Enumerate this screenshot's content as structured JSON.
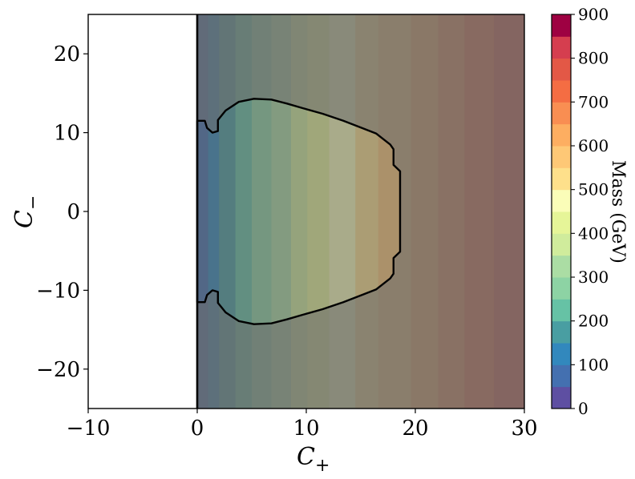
{
  "chart_data": {
    "type": "heatmap",
    "xlabel": "C+",
    "ylabel": "C−",
    "xlim": [
      -10,
      30
    ],
    "ylim": [
      -25,
      25
    ],
    "x_ticks": [
      -10,
      0,
      10,
      20,
      30
    ],
    "x_tick_labels": [
      "−10",
      "0",
      "10",
      "20",
      "30"
    ],
    "y_ticks": [
      -20,
      -10,
      0,
      10,
      20
    ],
    "y_tick_labels": [
      "−20",
      "−10",
      "0",
      "10",
      "20"
    ],
    "mass_field": {
      "description_source": "mass increases with C+, uniform in C−",
      "bands": [
        {
          "x_from": 0,
          "x_to": 1,
          "mass": 50
        },
        {
          "x_from": 1,
          "x_to": 2,
          "mass": 100
        },
        {
          "x_from": 2,
          "x_to": 3.5,
          "mass": 150
        },
        {
          "x_from": 3.5,
          "x_to": 5,
          "mass": 200
        },
        {
          "x_from": 5,
          "x_to": 6.8,
          "mass": 250
        },
        {
          "x_from": 6.8,
          "x_to": 8.6,
          "mass": 300
        },
        {
          "x_from": 8.6,
          "x_to": 10.1,
          "mass": 350
        },
        {
          "x_from": 10.1,
          "x_to": 12.1,
          "mass": 400
        },
        {
          "x_from": 12.1,
          "x_to": 14.5,
          "mass": 450
        },
        {
          "x_from": 14.5,
          "x_to": 16.6,
          "mass": 500
        },
        {
          "x_from": 16.6,
          "x_to": 19.6,
          "mass": 550
        },
        {
          "x_from": 19.6,
          "x_to": 22.1,
          "mass": 600
        },
        {
          "x_from": 22.1,
          "x_to": 24.5,
          "mass": 650
        },
        {
          "x_from": 24.5,
          "x_to": 27.2,
          "mass": 700
        },
        {
          "x_from": 27.2,
          "x_to": 30,
          "mass": 750
        }
      ]
    },
    "allowed_region_boundary": [
      [
        0.0,
        11.5
      ],
      [
        0.7,
        11.5
      ],
      [
        0.9,
        10.6
      ],
      [
        1.4,
        10.0
      ],
      [
        1.9,
        10.2
      ],
      [
        1.9,
        11.6
      ],
      [
        2.6,
        12.8
      ],
      [
        3.8,
        13.9
      ],
      [
        5.2,
        14.3
      ],
      [
        6.8,
        14.2
      ],
      [
        8.2,
        13.7
      ],
      [
        9.7,
        13.1
      ],
      [
        11.5,
        12.4
      ],
      [
        13.4,
        11.5
      ],
      [
        15.1,
        10.6
      ],
      [
        16.4,
        9.9
      ],
      [
        17.7,
        8.5
      ],
      [
        18.0,
        7.9
      ],
      [
        18.0,
        5.9
      ],
      [
        18.6,
        5.1
      ],
      [
        18.6,
        0.0
      ],
      [
        18.6,
        -5.1
      ],
      [
        18.0,
        -5.9
      ],
      [
        18.0,
        -7.9
      ],
      [
        17.7,
        -8.5
      ],
      [
        16.4,
        -9.9
      ],
      [
        15.1,
        -10.6
      ],
      [
        13.4,
        -11.5
      ],
      [
        11.5,
        -12.4
      ],
      [
        9.7,
        -13.1
      ],
      [
        8.2,
        -13.7
      ],
      [
        6.8,
        -14.2
      ],
      [
        5.2,
        -14.3
      ],
      [
        3.8,
        -13.9
      ],
      [
        2.6,
        -12.8
      ],
      [
        1.9,
        -11.6
      ],
      [
        1.9,
        -10.2
      ],
      [
        1.4,
        -10.0
      ],
      [
        0.9,
        -10.6
      ],
      [
        0.7,
        -11.5
      ],
      [
        0.0,
        -11.5
      ]
    ],
    "boundary_line_x": 0,
    "colorbar": {
      "label": "Mass (GeV)",
      "min": 0,
      "max": 900,
      "ticks": [
        0,
        100,
        200,
        300,
        400,
        500,
        600,
        700,
        800,
        900
      ],
      "levels": 18,
      "colors": [
        "#5e4fa2",
        "#4470b0",
        "#3288bd",
        "#499ea2",
        "#66c2a5",
        "#8dd3a4",
        "#abdda4",
        "#d0ec9c",
        "#e6f598",
        "#fafdb8",
        "#fee08b",
        "#fec876",
        "#fdae61",
        "#f98e52",
        "#f46d43",
        "#e35846",
        "#d53e4f",
        "#9e0142"
      ]
    }
  }
}
